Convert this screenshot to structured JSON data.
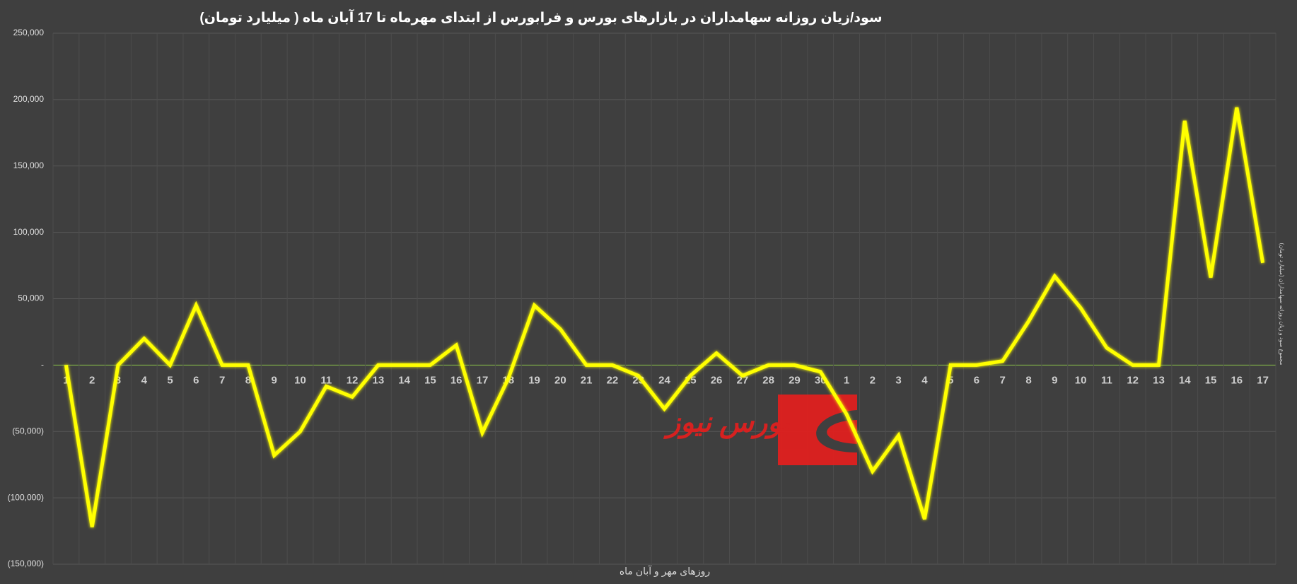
{
  "chart_data": {
    "type": "line",
    "title": "سود/زیان روزانه سهامداران در بازارهای بورس و فرابورس  از ابتدای مهرماه تا 17 آبان ماه ( میلیارد تومان)",
    "x_label": "روزهای مهر و آبان  ماه",
    "y2_label": "مجموع سود و زیان روزانه سهامداران (میلیارد تومان)",
    "watermark": "بورس نیوز",
    "categories": [
      "1",
      "2",
      "3",
      "4",
      "5",
      "6",
      "7",
      "8",
      "9",
      "10",
      "11",
      "12",
      "13",
      "14",
      "15",
      "16",
      "17",
      "18",
      "19",
      "20",
      "21",
      "22",
      "23",
      "24",
      "25",
      "26",
      "27",
      "28",
      "29",
      "30",
      "1",
      "2",
      "3",
      "4",
      "5",
      "6",
      "7",
      "8",
      "9",
      "10",
      "11",
      "12",
      "13",
      "14",
      "15",
      "16",
      "17"
    ],
    "values": [
      0,
      -122000,
      0,
      20000,
      0,
      45000,
      0,
      0,
      -68000,
      -50000,
      -16000,
      -24000,
      0,
      0,
      0,
      15000,
      -51000,
      -10000,
      45000,
      27000,
      0,
      0,
      -8000,
      -33000,
      -8000,
      9000,
      -8000,
      0,
      0,
      -5000,
      -37000,
      -80000,
      -53000,
      -116000,
      0,
      0,
      3000,
      33000,
      67000,
      43000,
      13000,
      0,
      0,
      184000,
      66000,
      194000,
      77000
    ],
    "color": "#ffff00",
    "zero_line_color": "#8bc34a",
    "ylim": [
      -150000,
      250000
    ],
    "yticks": [
      {
        "value": -150000,
        "label": "(150,000)"
      },
      {
        "value": -100000,
        "label": "(100,000)"
      },
      {
        "value": -50000,
        "label": "(50,000)"
      },
      {
        "value": 0,
        "label": "-"
      },
      {
        "value": 50000,
        "label": "50,000"
      },
      {
        "value": 100000,
        "label": "100,000"
      },
      {
        "value": 150000,
        "label": "150,000"
      },
      {
        "value": 200000,
        "label": "200,000"
      },
      {
        "value": 250000,
        "label": "250,000"
      }
    ],
    "grid": true
  }
}
